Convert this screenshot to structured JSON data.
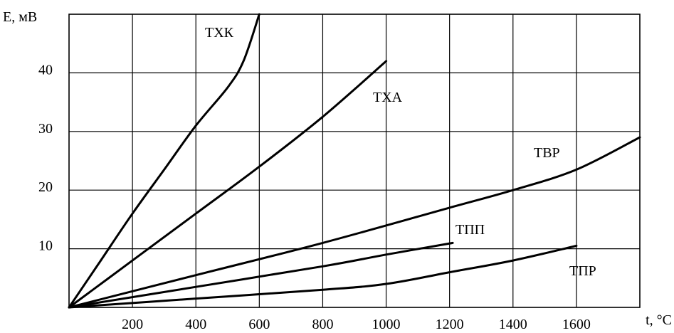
{
  "chart_data": {
    "type": "line",
    "xlabel": "t, °C",
    "ylabel": "E, мВ",
    "xlim": [
      0,
      1800
    ],
    "ylim": [
      0,
      50
    ],
    "grid": true,
    "x_ticks": [
      200,
      400,
      600,
      800,
      1000,
      1200,
      1400,
      1600
    ],
    "y_ticks": [
      10,
      20,
      30,
      40
    ],
    "series": [
      {
        "name": "ТХК",
        "x": [
          0,
          100,
          200,
          300,
          400,
          500,
          550,
          600
        ],
        "y": [
          0,
          8,
          16,
          23.5,
          31,
          37.5,
          42,
          50
        ]
      },
      {
        "name": "ТХА",
        "x": [
          0,
          200,
          400,
          600,
          800,
          1000
        ],
        "y": [
          0,
          8,
          16,
          24,
          32.5,
          42
        ]
      },
      {
        "name": "ТВР",
        "x": [
          0,
          400,
          800,
          1200,
          1400,
          1600,
          1800
        ],
        "y": [
          0,
          5.5,
          11,
          17,
          20,
          23.5,
          29
        ]
      },
      {
        "name": "ТПП",
        "x": [
          0,
          400,
          800,
          1000,
          1210
        ],
        "y": [
          0,
          3.5,
          7,
          9,
          11
        ]
      },
      {
        "name": "ТПР",
        "x": [
          0,
          400,
          800,
          1000,
          1200,
          1400,
          1600
        ],
        "y": [
          0,
          1.5,
          3,
          4,
          6,
          8,
          10.5
        ]
      }
    ]
  }
}
